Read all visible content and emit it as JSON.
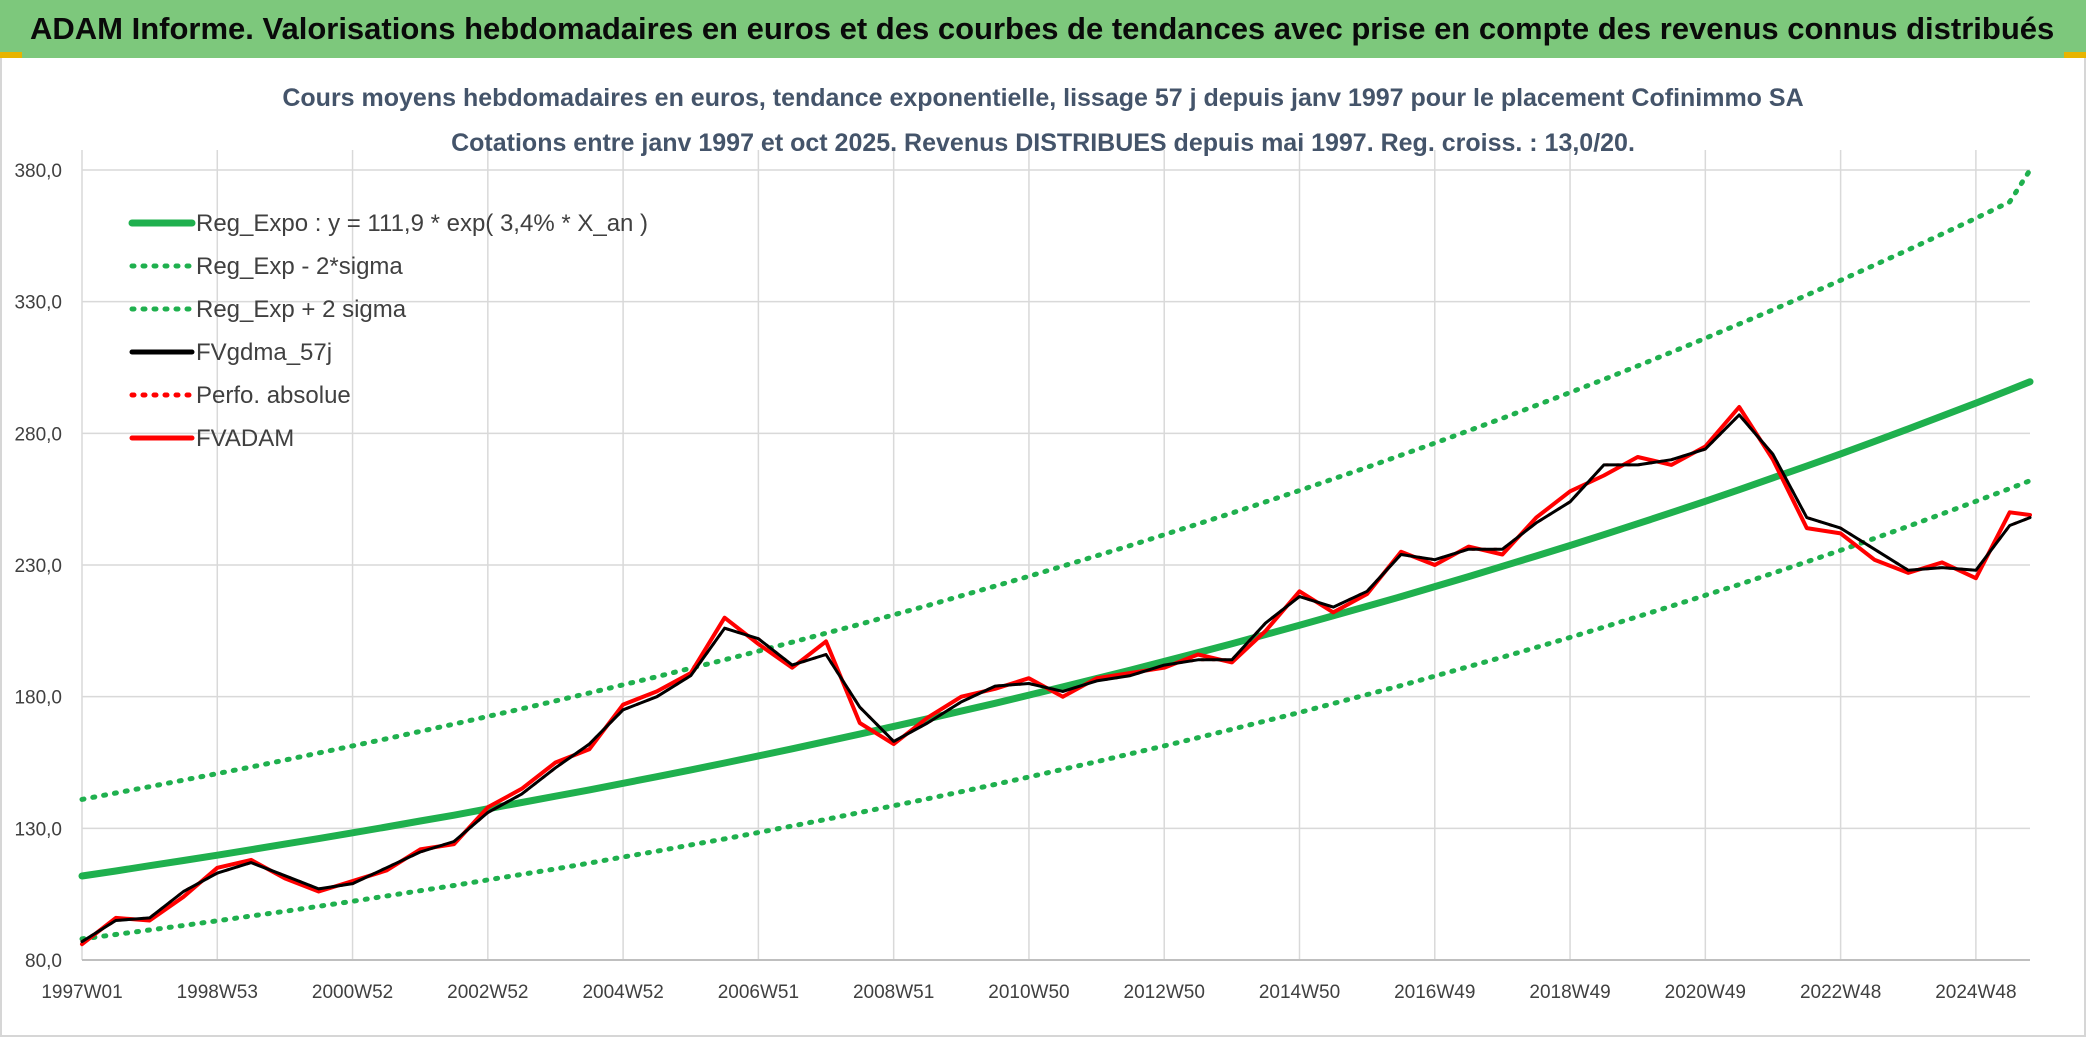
{
  "header": {
    "title": "ADAM Informe. Valorisations hebdomadaires en euros et des courbes de tendances avec prise en compte des revenus connus distribués"
  },
  "colors": {
    "banner": "#7dc87c",
    "trend_green": "#1fb04e",
    "band_green": "#1fb04e",
    "smooth_black": "#000000",
    "price_red": "#ff0000"
  },
  "chart_data": {
    "type": "line",
    "title": "Cours moyens hebdomadaires en euros, tendance exponentielle, lissage 57 j depuis janv 1997 pour le placement Cofinimmo SA",
    "subtitle": "Cotations entre janv 1997 et oct 2025. Revenus DISTRIBUES depuis mai 1997. Reg. croiss. : 13,0/20.",
    "xlabel": "",
    "ylabel": "",
    "ylim": [
      80,
      380
    ],
    "yticks": [
      "80,0",
      "130,0",
      "180,0",
      "230,0",
      "280,0",
      "330,0",
      "380,0"
    ],
    "xlim": [
      1997.0,
      2025.8
    ],
    "xticks": [
      {
        "label": "1997W01",
        "x": 1997.0
      },
      {
        "label": "1998W53",
        "x": 1999.0
      },
      {
        "label": "2000W52",
        "x": 2001.0
      },
      {
        "label": "2002W52",
        "x": 2003.0
      },
      {
        "label": "2004W52",
        "x": 2005.0
      },
      {
        "label": "2006W51",
        "x": 2007.0
      },
      {
        "label": "2008W51",
        "x": 2009.0
      },
      {
        "label": "2010W50",
        "x": 2011.0
      },
      {
        "label": "2012W50",
        "x": 2013.0
      },
      {
        "label": "2014W50",
        "x": 2015.0
      },
      {
        "label": "2016W49",
        "x": 2017.0
      },
      {
        "label": "2018W49",
        "x": 2019.0
      },
      {
        "label": "2020W49",
        "x": 2021.0
      },
      {
        "label": "2022W48",
        "x": 2023.0
      },
      {
        "label": "2024W48",
        "x": 2025.0
      }
    ],
    "grid": true,
    "legend_position": "top-left",
    "x": [
      1997.0,
      1997.5,
      1998.0,
      1998.5,
      1999.0,
      1999.5,
      2000.0,
      2000.5,
      2001.0,
      2001.5,
      2002.0,
      2002.5,
      2003.0,
      2003.5,
      2004.0,
      2004.5,
      2005.0,
      2005.5,
      2006.0,
      2006.5,
      2007.0,
      2007.5,
      2008.0,
      2008.5,
      2009.0,
      2009.5,
      2010.0,
      2010.5,
      2011.0,
      2011.5,
      2012.0,
      2012.5,
      2013.0,
      2013.5,
      2014.0,
      2014.5,
      2015.0,
      2015.5,
      2016.0,
      2016.5,
      2017.0,
      2017.5,
      2018.0,
      2018.5,
      2019.0,
      2019.5,
      2020.0,
      2020.5,
      2021.0,
      2021.5,
      2022.0,
      2022.5,
      2023.0,
      2023.5,
      2024.0,
      2024.5,
      2025.0,
      2025.5,
      2025.8
    ],
    "series": [
      {
        "name": "Reg_Expo : y = 111,9 * exp( 3,4% *  X_an )",
        "style": "solid",
        "color": "#1fb04e",
        "values": [
          111.9,
          113.8,
          115.8,
          117.8,
          119.8,
          121.9,
          124.0,
          126.1,
          128.3,
          130.5,
          132.8,
          135.0,
          137.4,
          139.8,
          142.2,
          144.6,
          147.1,
          149.6,
          152.2,
          154.8,
          157.5,
          160.2,
          163.0,
          165.8,
          168.7,
          171.6,
          174.5,
          177.5,
          180.6,
          183.7,
          186.9,
          190.1,
          193.4,
          196.7,
          200.1,
          203.6,
          207.1,
          210.7,
          214.3,
          218.0,
          221.8,
          225.6,
          229.5,
          233.4,
          237.4,
          241.5,
          245.7,
          249.9,
          254.2,
          258.6,
          263.1,
          267.6,
          272.2,
          276.9,
          281.7,
          286.6,
          291.5,
          296.5,
          299.6
        ]
      },
      {
        "name": "Reg_Exp - 2*sigma",
        "style": "dotted",
        "color": "#1fb04e",
        "values": [
          88.0,
          89.7,
          91.4,
          93.1,
          94.9,
          96.7,
          98.5,
          100.4,
          102.3,
          104.3,
          106.3,
          108.3,
          110.4,
          112.5,
          114.6,
          116.8,
          119.1,
          121.3,
          123.7,
          126.0,
          128.4,
          130.9,
          133.4,
          136.0,
          138.6,
          141.2,
          143.9,
          146.7,
          149.5,
          152.4,
          155.3,
          158.3,
          161.3,
          164.4,
          167.6,
          170.8,
          174.0,
          177.4,
          180.8,
          184.2,
          187.8,
          191.4,
          195.0,
          198.7,
          202.5,
          206.4,
          210.4,
          214.4,
          218.5,
          222.6,
          226.9,
          231.2,
          235.6,
          240.1,
          244.7,
          249.4,
          254.2,
          259.0,
          262.0
        ]
      },
      {
        "name": "Reg_Exp + 2 sigma",
        "style": "dotted",
        "color": "#1fb04e",
        "values": [
          141.0,
          143.4,
          145.8,
          148.3,
          150.8,
          153.3,
          155.9,
          158.6,
          161.3,
          164.0,
          166.8,
          169.6,
          172.5,
          175.4,
          178.4,
          181.4,
          184.5,
          187.6,
          190.8,
          194.0,
          197.3,
          200.7,
          204.1,
          207.5,
          211.1,
          214.6,
          218.3,
          222.0,
          225.7,
          229.6,
          233.5,
          237.4,
          241.5,
          245.6,
          249.7,
          254.0,
          258.3,
          262.7,
          267.1,
          271.7,
          276.3,
          281.0,
          285.7,
          290.6,
          295.5,
          300.5,
          305.6,
          310.8,
          316.1,
          321.5,
          326.9,
          332.5,
          338.1,
          343.9,
          349.7,
          355.7,
          361.7,
          367.9,
          380.0
        ]
      },
      {
        "name": "FVgdma_57j",
        "style": "solid",
        "color": "#000000",
        "values": [
          87,
          95,
          96,
          106,
          113,
          117,
          112,
          107,
          109,
          115,
          121,
          125,
          136,
          143,
          153,
          162,
          175,
          180,
          188,
          206,
          202,
          192,
          196,
          176,
          163,
          170,
          178,
          184,
          185,
          182,
          186,
          188,
          192,
          194,
          194,
          208,
          218,
          214,
          220,
          234,
          232,
          236,
          236,
          246,
          254,
          268,
          268,
          270,
          274,
          287,
          272,
          248,
          244,
          236,
          228,
          229,
          228,
          245,
          248
        ]
      },
      {
        "name": "Perfo. absolue",
        "style": "dotted",
        "color": "#ff0000",
        "values": [
          87,
          95,
          96,
          106,
          113,
          117,
          112,
          107,
          109,
          115,
          121,
          125,
          136,
          143,
          153,
          162,
          175,
          180,
          188,
          206,
          202,
          192,
          196,
          176,
          163,
          170,
          178,
          184,
          185,
          182,
          186,
          188,
          192,
          194,
          194,
          208,
          218,
          214,
          220,
          234,
          232,
          236,
          236,
          246,
          254,
          268,
          268,
          270,
          274,
          287,
          272,
          248,
          244,
          236,
          228,
          229,
          228,
          245,
          248
        ]
      },
      {
        "name": "FVADAM",
        "style": "solid",
        "color": "#ff0000",
        "values": [
          86,
          96,
          95,
          104,
          115,
          118,
          111,
          106,
          110,
          114,
          122,
          124,
          138,
          145,
          155,
          160,
          177,
          182,
          189,
          210,
          200,
          191,
          201,
          170,
          162,
          172,
          180,
          183,
          187,
          180,
          187,
          189,
          191,
          196,
          193,
          205,
          220,
          212,
          219,
          235,
          230,
          237,
          234,
          248,
          258,
          264,
          271,
          268,
          275,
          290,
          270,
          244,
          242,
          232,
          227,
          231,
          225,
          250,
          249
        ]
      }
    ]
  }
}
